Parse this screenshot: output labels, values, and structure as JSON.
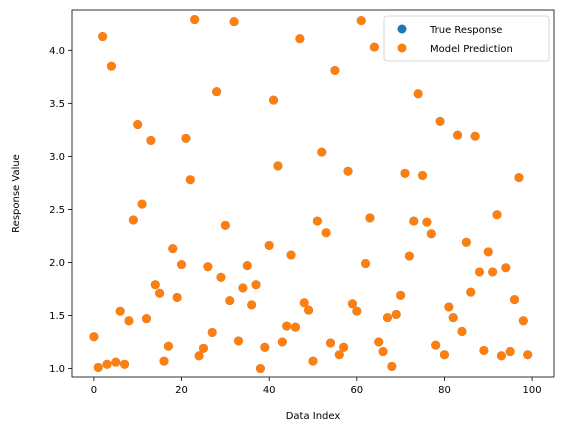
{
  "chart_data": {
    "type": "scatter",
    "title": "",
    "xlabel": "Data Index",
    "ylabel": "Response Value",
    "xlim": [
      -5,
      105
    ],
    "ylim": [
      0.92,
      4.38
    ],
    "xticks": [
      0,
      20,
      40,
      60,
      80,
      100
    ],
    "yticks": [
      1.0,
      1.5,
      2.0,
      2.5,
      3.0,
      3.5,
      4.0
    ],
    "xtick_labels": [
      "0",
      "20",
      "40",
      "60",
      "80",
      "100"
    ],
    "ytick_labels": [
      "1.0",
      "1.5",
      "2.0",
      "2.5",
      "3.0",
      "3.5",
      "4.0"
    ],
    "grid": false,
    "legend_position": "upper-right",
    "x": [
      0,
      1,
      2,
      3,
      4,
      5,
      6,
      7,
      8,
      9,
      10,
      11,
      12,
      13,
      14,
      15,
      16,
      17,
      18,
      19,
      20,
      21,
      22,
      23,
      24,
      25,
      26,
      27,
      28,
      29,
      30,
      31,
      32,
      33,
      34,
      35,
      36,
      37,
      38,
      39,
      40,
      41,
      42,
      43,
      44,
      45,
      46,
      47,
      48,
      49,
      50,
      51,
      52,
      53,
      54,
      55,
      56,
      57,
      58,
      59,
      60,
      61,
      62,
      63,
      64,
      65,
      66,
      67,
      68,
      69,
      70,
      71,
      72,
      73,
      74,
      75,
      76,
      77,
      78,
      79,
      80,
      81,
      82,
      83,
      84,
      85,
      86,
      87,
      88,
      89,
      90,
      91,
      92,
      93,
      94,
      95,
      96,
      97,
      98,
      99
    ],
    "series": [
      {
        "name": "True Response",
        "color": "#1f77b4",
        "values": [
          1.3,
          1.01,
          4.13,
          1.04,
          3.85,
          1.06,
          1.54,
          1.04,
          1.45,
          2.4,
          3.3,
          2.55,
          1.47,
          3.15,
          1.79,
          1.71,
          1.07,
          1.21,
          2.13,
          1.67,
          1.98,
          3.17,
          2.78,
          4.29,
          1.12,
          1.19,
          1.96,
          1.34,
          3.61,
          1.86,
          2.35,
          1.64,
          4.27,
          1.26,
          1.76,
          1.97,
          1.6,
          1.79,
          1.0,
          1.2,
          2.16,
          3.53,
          2.91,
          1.25,
          1.4,
          2.07,
          1.39,
          4.11,
          1.62,
          1.55,
          1.07,
          2.39,
          3.04,
          2.28,
          1.24,
          3.81,
          1.13,
          1.2,
          2.86,
          1.61,
          1.54,
          4.28,
          1.99,
          2.42,
          4.03,
          1.25,
          1.16,
          1.48,
          1.02,
          1.51,
          1.69,
          2.84,
          2.06,
          2.39,
          3.59,
          2.82,
          2.38,
          2.27,
          1.22,
          3.33,
          1.13,
          1.58,
          1.48,
          3.2,
          1.35,
          2.19,
          1.72,
          3.19,
          1.91,
          1.17,
          2.1,
          1.91,
          2.45,
          1.12,
          1.95,
          1.16,
          1.65,
          2.8,
          1.45,
          1.13
        ]
      },
      {
        "name": "Model Prediction",
        "color": "#ff7f0e",
        "values": [
          1.3,
          1.01,
          4.13,
          1.04,
          3.85,
          1.06,
          1.54,
          1.04,
          1.45,
          2.4,
          3.3,
          2.55,
          1.47,
          3.15,
          1.79,
          1.71,
          1.07,
          1.21,
          2.13,
          1.67,
          1.98,
          3.17,
          2.78,
          4.29,
          1.12,
          1.19,
          1.96,
          1.34,
          3.61,
          1.86,
          2.35,
          1.64,
          4.27,
          1.26,
          1.76,
          1.97,
          1.6,
          1.79,
          1.0,
          1.2,
          2.16,
          3.53,
          2.91,
          1.25,
          1.4,
          2.07,
          1.39,
          4.11,
          1.62,
          1.55,
          1.07,
          2.39,
          3.04,
          2.28,
          1.24,
          3.81,
          1.13,
          1.2,
          2.86,
          1.61,
          1.54,
          4.28,
          1.99,
          2.42,
          4.03,
          1.25,
          1.16,
          1.48,
          1.02,
          1.51,
          1.69,
          2.84,
          2.06,
          2.39,
          3.59,
          2.82,
          2.38,
          2.27,
          1.22,
          3.33,
          1.13,
          1.58,
          1.48,
          3.2,
          1.35,
          2.19,
          1.72,
          3.19,
          1.91,
          1.17,
          2.1,
          1.91,
          2.45,
          1.12,
          1.95,
          1.16,
          1.65,
          2.8,
          1.45,
          1.13
        ]
      }
    ]
  }
}
